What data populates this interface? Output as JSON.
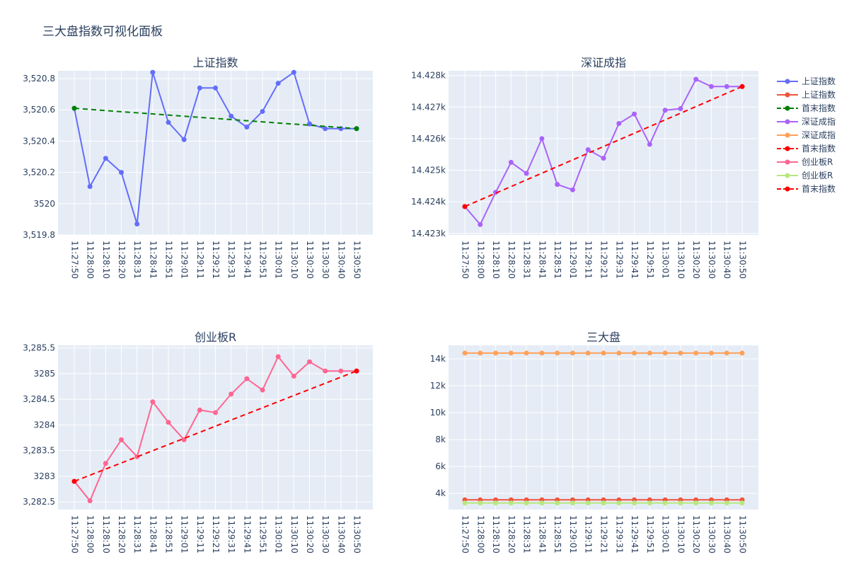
{
  "page": {
    "title": "三大盘指数可视化面板"
  },
  "times": [
    "11:27:50",
    "11:28:00",
    "11:28:10",
    "11:28:20",
    "11:28:31",
    "11:28:41",
    "11:28:51",
    "11:29:01",
    "11:29:11",
    "11:29:21",
    "11:29:31",
    "11:29:41",
    "11:29:51",
    "11:30:01",
    "11:30:10",
    "11:30:20",
    "11:30:30",
    "11:30:40",
    "11:30:50"
  ],
  "colors": {
    "plot_bg": "#e5ecf6",
    "grid": "#ffffff",
    "sh": "#636efa",
    "sh_line": "#ef553b",
    "sz": "#ab63fa",
    "sz_line": "#ffa15a",
    "cy": "#ff6692",
    "cy_line": "#b6e880",
    "trend_green": "#008000",
    "trend_red": "#ff0000"
  },
  "legend": {
    "position": "right",
    "items": [
      {
        "label": "上证指数",
        "color": "#636efa",
        "dash": false
      },
      {
        "label": "上证指数",
        "color": "#ef553b",
        "dash": false
      },
      {
        "label": "首末指数",
        "color": "#008000",
        "dash": true
      },
      {
        "label": "深证成指",
        "color": "#ab63fa",
        "dash": false
      },
      {
        "label": "深证成指",
        "color": "#ffa15a",
        "dash": false
      },
      {
        "label": "首末指数",
        "color": "#ff0000",
        "dash": true
      },
      {
        "label": "创业板R",
        "color": "#ff6692",
        "dash": false
      },
      {
        "label": "创业板R",
        "color": "#b6e880",
        "dash": false
      },
      {
        "label": "首末指数",
        "color": "#ff0000",
        "dash": true
      }
    ]
  },
  "chart_data": [
    {
      "type": "line",
      "title": "上证指数",
      "ylim": [
        3519.8,
        3520.85
      ],
      "yticks": [
        3519.8,
        3520,
        3520.2,
        3520.4,
        3520.6,
        3520.8
      ],
      "ytick_labels": [
        "3,519.8",
        "3520",
        "3,520.2",
        "3,520.4",
        "3,520.6",
        "3,520.8"
      ],
      "grid": true,
      "series": [
        {
          "name": "上证指数",
          "color": "#636efa",
          "dash": false,
          "values": [
            3520.61,
            3520.11,
            3520.29,
            3520.2,
            3519.87,
            3520.84,
            3520.52,
            3520.41,
            3520.74,
            3520.74,
            3520.56,
            3520.49,
            3520.59,
            3520.77,
            3520.84,
            3520.51,
            3520.48,
            3520.48,
            3520.48
          ]
        },
        {
          "name": "首末指数",
          "color": "#008000",
          "dash": true,
          "points": [
            [
              0,
              3520.61
            ],
            [
              18,
              3520.48
            ]
          ]
        }
      ]
    },
    {
      "type": "line",
      "title": "深证成指",
      "ylim": [
        14422.95,
        14428.15
      ],
      "yticks": [
        14423,
        14424,
        14425,
        14426,
        14427,
        14428
      ],
      "ytick_labels": [
        "14.423k",
        "14.424k",
        "14.425k",
        "14.426k",
        "14.427k",
        "14.428k"
      ],
      "grid": true,
      "series": [
        {
          "name": "深证成指",
          "color": "#ab63fa",
          "dash": false,
          "values": [
            14423.85,
            14423.28,
            14424.3,
            14425.25,
            14424.9,
            14426.0,
            14424.55,
            14424.38,
            14425.65,
            14425.38,
            14426.48,
            14426.78,
            14425.82,
            14426.9,
            14426.95,
            14427.88,
            14427.65,
            14427.65,
            14427.65
          ]
        },
        {
          "name": "首末指数",
          "color": "#ff0000",
          "dash": true,
          "points": [
            [
              0,
              14423.85
            ],
            [
              18,
              14427.65
            ]
          ]
        }
      ]
    },
    {
      "type": "line",
      "title": "创业板R",
      "ylim": [
        3282.35,
        3285.55
      ],
      "yticks": [
        3282.5,
        3283,
        3283.5,
        3284,
        3284.5,
        3285,
        3285.5
      ],
      "ytick_labels": [
        "3,282.5",
        "3283",
        "3,283.5",
        "3284",
        "3,284.5",
        "3285",
        "3,285.5"
      ],
      "grid": true,
      "series": [
        {
          "name": "创业板R",
          "color": "#ff6692",
          "dash": false,
          "values": [
            3282.9,
            3282.52,
            3283.25,
            3283.71,
            3283.38,
            3284.45,
            3284.05,
            3283.71,
            3284.29,
            3284.24,
            3284.6,
            3284.9,
            3284.68,
            3285.33,
            3284.95,
            3285.23,
            3285.05,
            3285.05,
            3285.05
          ]
        },
        {
          "name": "首末指数",
          "color": "#ff0000",
          "dash": true,
          "points": [
            [
              0,
              3282.9
            ],
            [
              18,
              3285.05
            ]
          ]
        }
      ]
    },
    {
      "type": "line",
      "title": "三大盘",
      "ylim": [
        2800,
        15000
      ],
      "yticks": [
        4000,
        6000,
        8000,
        10000,
        12000,
        14000
      ],
      "ytick_labels": [
        "4k",
        "6k",
        "8k",
        "10k",
        "12k",
        "14k"
      ],
      "grid": true,
      "series": [
        {
          "name": "上证指数",
          "color": "#ef553b",
          "dash": false,
          "constant": 3520.5
        },
        {
          "name": "深证成指",
          "color": "#ffa15a",
          "dash": false,
          "constant": 14425.6
        },
        {
          "name": "创业板R",
          "color": "#b6e880",
          "dash": false,
          "constant": 3284.3
        }
      ]
    }
  ]
}
